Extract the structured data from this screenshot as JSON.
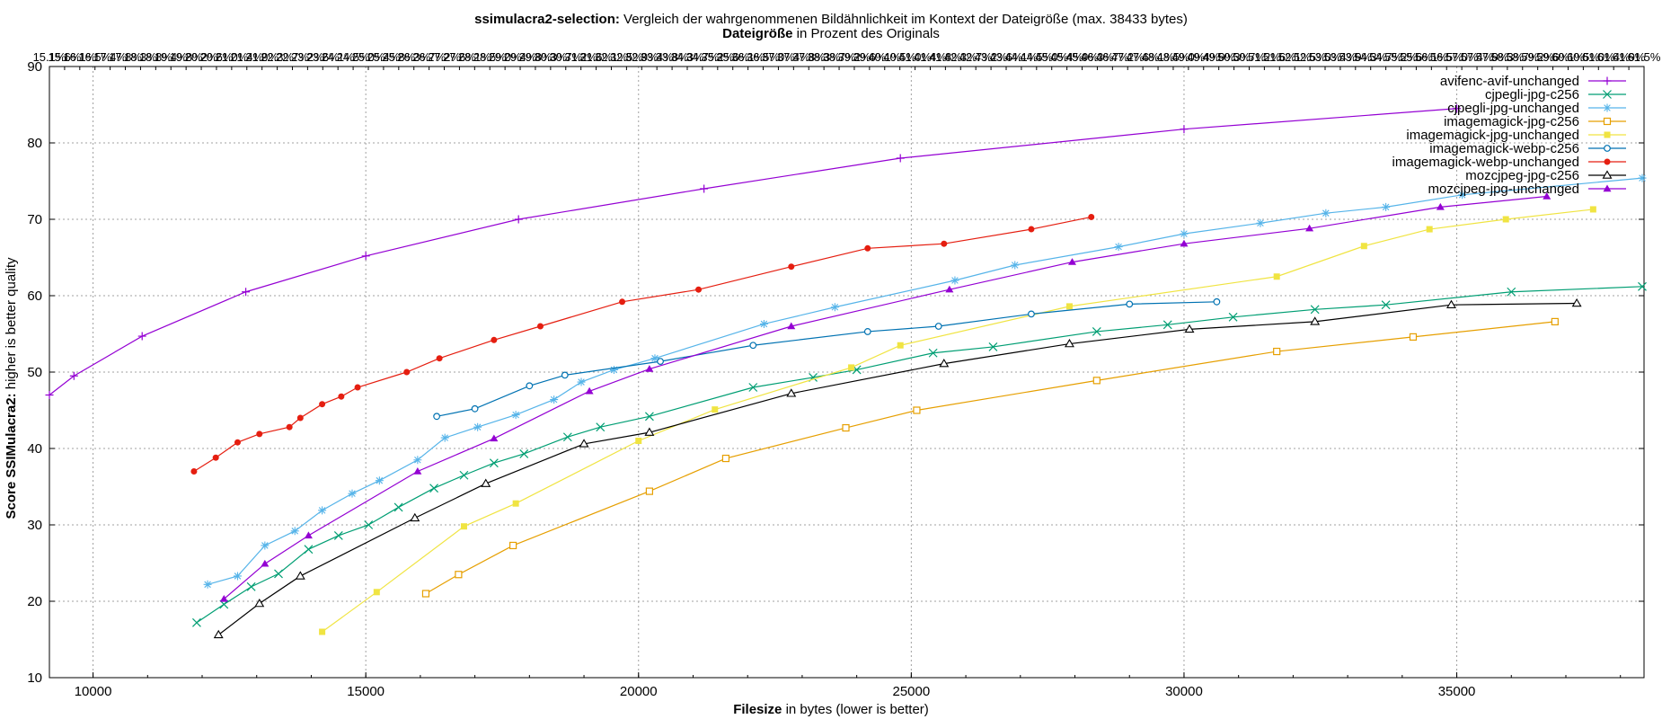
{
  "chart_data": {
    "type": "line",
    "title_bold": "ssimulacra2-selection:",
    "title_rest": " Vergleich der wahrgenommenen Bildähnlichkeit im Kontext der Dateigröße (max. 38433 bytes)",
    "x2label_bold": "Dateigröße",
    "x2label_rest": " in Prozent des Originals",
    "xlabel_bold": "Filesize",
    "xlabel_rest": " in bytes (lower is better)",
    "ylabel_bold": "Score SSIMulacra2:",
    "ylabel_rest": " higher is better quality",
    "xlim": [
      9200,
      38433
    ],
    "ylim": [
      10,
      90
    ],
    "xticks": [
      10000,
      15000,
      20000,
      25000,
      30000,
      35000
    ],
    "yticks": [
      10,
      20,
      30,
      40,
      50,
      60,
      70,
      80,
      90
    ],
    "x2ticks": [
      "15.1%",
      "15.6%",
      "16.1%",
      "16.5%",
      "17.4%",
      "17.8%",
      "18.3%",
      "18.8%",
      "19.4%",
      "19.8%",
      "20.2%",
      "20.6%",
      "21.0%",
      "21.4%",
      "21.9%",
      "22.3%",
      "22.7%",
      "23.2%",
      "23.6%",
      "24.1%",
      "24.5%",
      "25.0%",
      "25.4%",
      "25.8%",
      "26.3%",
      "26.7%",
      "27.2%",
      "27.6%",
      "28.1%",
      "28.5%",
      "29.0%",
      "29.4%",
      "29.8%",
      "30.3%",
      "30.7%",
      "31.2%",
      "31.6%",
      "32.1%",
      "32.5%",
      "32.9%",
      "33.4%",
      "33.8%",
      "34.3%",
      "34.7%",
      "35.2%",
      "35.6%",
      "36.1%",
      "36.5%",
      "37.0%",
      "37.4%",
      "37.8%",
      "38.3%",
      "38.7%",
      "39.2%",
      "39.6%",
      "40.1%",
      "40.5%",
      "41.0%",
      "41.4%",
      "41.8%",
      "42.3%",
      "42.7%",
      "43.2%",
      "43.6%",
      "44.1%",
      "44.5%",
      "45.0%",
      "45.4%",
      "45.9%",
      "46.3%",
      "46.7%",
      "47.2%",
      "47.6%",
      "48.1%",
      "48.5%",
      "49.0%",
      "49.4%",
      "49.9%",
      "50.3%",
      "50.7%",
      "51.2%",
      "51.6%",
      "52.1%",
      "52.5%",
      "53.0%",
      "53.4%",
      "53.9%",
      "54.3%",
      "54.7%",
      "55.2%",
      "55.6%",
      "56.1%",
      "56.5%",
      "57.0%",
      "57.4%",
      "57.9%",
      "58.3%",
      "58.7%",
      "59.2%",
      "59.6%",
      "60.1%",
      "60.5%",
      "61.0%",
      "61.4%",
      "61.9%",
      "61.5%"
    ],
    "grid": true,
    "legend_position": "top-right",
    "series": [
      {
        "name": "avifenc-avif-unchanged",
        "color": "#9400d3",
        "marker": "plus",
        "x": [
          9200,
          9650,
          10900,
          12800,
          15000,
          17800,
          21200,
          24800,
          30000,
          35000
        ],
        "y": [
          47,
          49.5,
          54.7,
          60.5,
          65.2,
          70,
          74,
          78,
          81.8,
          84.5
        ]
      },
      {
        "name": "cjpegli-jpg-c256",
        "color": "#009e73",
        "marker": "x",
        "x": [
          11900,
          12400,
          12900,
          13400,
          13950,
          14500,
          15050,
          15600,
          16250,
          16800,
          17350,
          17900,
          18700,
          19300,
          20200,
          22100,
          23200,
          24000,
          25400,
          26500,
          28400,
          29700,
          30900,
          32400,
          33700,
          36000,
          38400
        ],
        "y": [
          17.2,
          19.6,
          21.9,
          23.6,
          26.8,
          28.6,
          30,
          32.3,
          34.8,
          36.5,
          38.1,
          39.3,
          41.5,
          42.8,
          44.2,
          48,
          49.3,
          50.3,
          52.5,
          53.3,
          55.3,
          56.2,
          57.2,
          58.2,
          58.8,
          60.5,
          61.2
        ]
      },
      {
        "name": "cjpegli-jpg-unchanged",
        "color": "#56b4e9",
        "marker": "star",
        "x": [
          12100,
          12650,
          13150,
          13700,
          14200,
          14750,
          15250,
          15950,
          16450,
          17050,
          17750,
          18450,
          18950,
          19550,
          20300,
          22300,
          23600,
          25800,
          26900,
          28800,
          30000,
          31400,
          32600,
          33700,
          35100,
          38400
        ],
        "y": [
          22.2,
          23.3,
          27.3,
          29.2,
          31.9,
          34.1,
          35.8,
          38.5,
          41.4,
          42.8,
          44.4,
          46.4,
          48.7,
          50.3,
          51.8,
          56.3,
          58.5,
          62,
          64,
          66.4,
          68.1,
          69.5,
          70.8,
          71.6,
          73.2,
          75.4
        ]
      },
      {
        "name": "imagemagick-jpg-c256",
        "color": "#e69f00",
        "marker": "square",
        "x": [
          16100,
          16700,
          17700,
          20200,
          21600,
          23800,
          25100,
          28400,
          31700,
          34200,
          36800
        ],
        "y": [
          21,
          23.5,
          27.3,
          34.4,
          38.7,
          42.7,
          45,
          48.9,
          52.7,
          54.6,
          56.6
        ]
      },
      {
        "name": "imagemagick-jpg-unchanged",
        "color": "#f0e442",
        "marker": "filled-square",
        "x": [
          14200,
          15200,
          16800,
          17750,
          20000,
          21400,
          23900,
          24800,
          27900,
          31700,
          33300,
          34500,
          35900,
          37500
        ],
        "y": [
          16,
          21.2,
          29.8,
          32.8,
          41,
          45.1,
          50.6,
          53.5,
          58.6,
          62.5,
          66.5,
          68.7,
          70,
          71.3
        ]
      },
      {
        "name": "imagemagick-webp-c256",
        "color": "#0072b2",
        "marker": "circle",
        "x": [
          16300,
          17000,
          18000,
          18650,
          20400,
          22100,
          24200,
          25500,
          27200,
          29000,
          30600
        ],
        "y": [
          44.2,
          45.2,
          48.2,
          49.6,
          51.4,
          53.5,
          55.3,
          56,
          57.6,
          58.9,
          59.2
        ]
      },
      {
        "name": "imagemagick-webp-unchanged",
        "color": "#e51e10",
        "marker": "filled-circle",
        "x": [
          11850,
          12250,
          12650,
          13050,
          13600,
          13800,
          14200,
          14550,
          14850,
          15750,
          16350,
          17350,
          18200,
          19700,
          21100,
          22800,
          24200,
          25600,
          27200,
          28300
        ],
        "y": [
          37,
          38.8,
          40.8,
          41.9,
          42.8,
          44,
          45.8,
          46.8,
          48,
          50,
          51.8,
          54.2,
          56,
          59.2,
          60.8,
          63.8,
          66.2,
          66.8,
          68.7,
          70.3
        ]
      },
      {
        "name": "mozcjpeg-jpg-c256",
        "color": "#000000",
        "marker": "triangle",
        "x": [
          12300,
          13050,
          13800,
          15900,
          17200,
          19000,
          20200,
          22800,
          25600,
          27900,
          30100,
          32400,
          34900,
          37200
        ],
        "y": [
          15.6,
          19.7,
          23.3,
          30.9,
          35.4,
          40.6,
          42.1,
          47.2,
          51.1,
          53.7,
          55.6,
          56.6,
          58.8,
          59
        ]
      },
      {
        "name": "mozcjpeg-jpg-unchanged",
        "color": "#9400d3",
        "marker": "filled-triangle",
        "x": [
          12400,
          13150,
          13950,
          15950,
          17350,
          19100,
          20200,
          22800,
          25700,
          27950,
          30000,
          32300,
          34700,
          36650
        ],
        "y": [
          20.3,
          24.9,
          28.6,
          37,
          41.3,
          47.5,
          50.4,
          56,
          60.8,
          64.4,
          66.8,
          68.8,
          71.6,
          73
        ]
      }
    ]
  }
}
